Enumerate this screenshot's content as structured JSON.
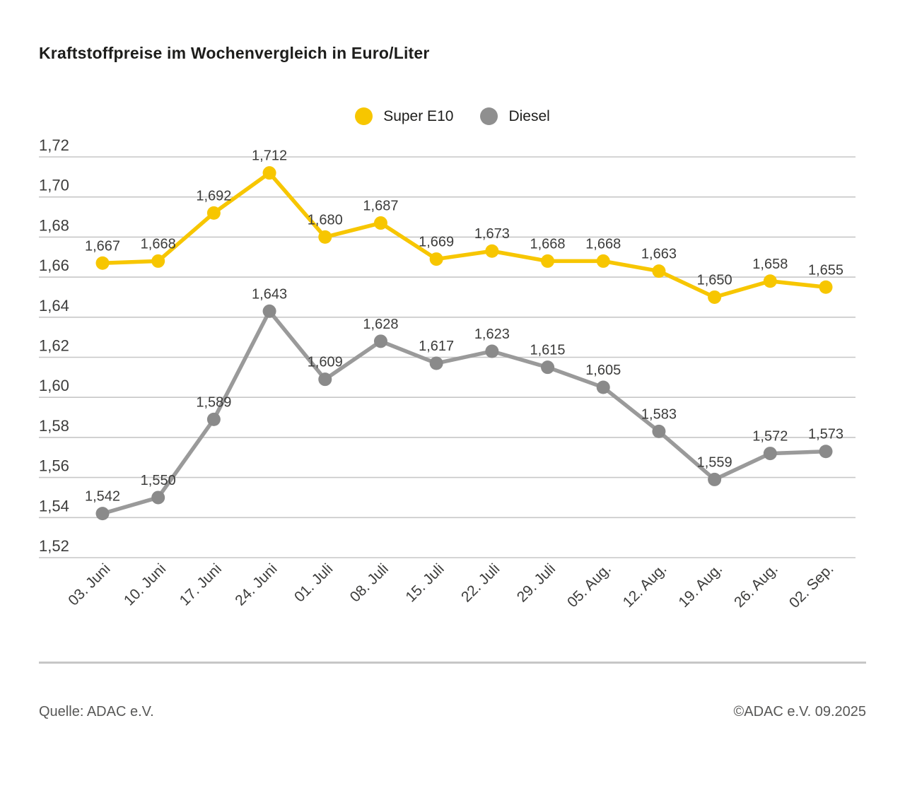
{
  "title": "Kraftstoffpreise im Wochenvergleich in Euro/Liter",
  "legend": {
    "items": [
      {
        "label": "Super E10",
        "color": "#F7C600"
      },
      {
        "label": "Diesel",
        "color": "#8F8F8F"
      }
    ]
  },
  "footer": {
    "source": "Quelle: ADAC e.V.",
    "copyright": "©ADAC e.V. 09.2025"
  },
  "colors": {
    "super_e10": "#F7C600",
    "diesel_line": "#9A9A9A",
    "diesel_marker": "#8A8A8A",
    "gridline": "#c7c7c7",
    "axis_text": "#3c3c3b",
    "label_text": "#3c3c3b"
  },
  "chart_data": {
    "type": "line",
    "title": "Kraftstoffpreise im Wochenvergleich in Euro/Liter",
    "categories": [
      "03. Juni",
      "10. Juni",
      "17. Juni",
      "24. Juni",
      "01. Juli",
      "08. Juli",
      "15. Juli",
      "22. Juli",
      "29. Juli",
      "05. Aug.",
      "12. Aug.",
      "19. Aug.",
      "26. Aug.",
      "02. Sep."
    ],
    "series": [
      {
        "name": "Super E10",
        "color": "#F7C600",
        "marker_color": "#F7C600",
        "values": [
          1.667,
          1.668,
          1.692,
          1.712,
          1.68,
          1.687,
          1.669,
          1.673,
          1.668,
          1.668,
          1.663,
          1.65,
          1.658,
          1.655
        ]
      },
      {
        "name": "Diesel",
        "color": "#9A9A9A",
        "marker_color": "#8A8A8A",
        "values": [
          1.542,
          1.55,
          1.589,
          1.643,
          1.609,
          1.628,
          1.617,
          1.623,
          1.615,
          1.605,
          1.583,
          1.559,
          1.572,
          1.573
        ]
      }
    ],
    "ylabel": "",
    "xlabel": "",
    "ylim": [
      1.52,
      1.72
    ],
    "ytick_step": 0.02,
    "ytick_labels": [
      "1,72",
      "1,70",
      "1,68",
      "1,66",
      "1,64",
      "1,62",
      "1,60",
      "1,58",
      "1,56",
      "1,54",
      "1,52"
    ],
    "grid": "horizontal",
    "legend_position": "top-center",
    "decimal_separator": ",",
    "value_label_decimals": 3,
    "x_tick_rotation_deg": -45
  }
}
